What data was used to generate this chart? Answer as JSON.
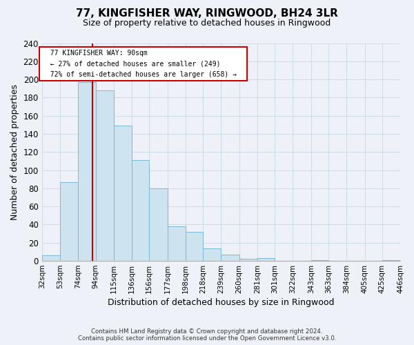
{
  "title": "77, KINGFISHER WAY, RINGWOOD, BH24 3LR",
  "subtitle": "Size of property relative to detached houses in Ringwood",
  "xlabel": "Distribution of detached houses by size in Ringwood",
  "ylabel": "Number of detached properties",
  "footer_line1": "Contains HM Land Registry data © Crown copyright and database right 2024.",
  "footer_line2": "Contains public sector information licensed under the Open Government Licence v3.0.",
  "bin_edges": [
    32,
    53,
    74,
    94,
    115,
    136,
    156,
    177,
    198,
    218,
    239,
    260,
    281,
    301,
    322,
    343,
    363,
    384,
    405,
    425,
    446
  ],
  "bin_labels": [
    "32sqm",
    "53sqm",
    "74sqm",
    "94sqm",
    "115sqm",
    "136sqm",
    "156sqm",
    "177sqm",
    "198sqm",
    "218sqm",
    "239sqm",
    "260sqm",
    "281sqm",
    "301sqm",
    "322sqm",
    "343sqm",
    "363sqm",
    "384sqm",
    "405sqm",
    "425sqm",
    "446sqm"
  ],
  "counts": [
    6,
    87,
    197,
    188,
    149,
    111,
    80,
    38,
    32,
    14,
    7,
    2,
    3,
    0,
    0,
    1,
    0,
    0,
    0,
    1
  ],
  "bar_color": "#cde4f0",
  "bar_edge_color": "#7ab8d4",
  "property_line_x": 90,
  "annotation_title": "77 KINGFISHER WAY: 90sqm",
  "annotation_line2": "← 27% of detached houses are smaller (249)",
  "annotation_line3": "72% of semi-detached houses are larger (658) →",
  "vline_color": "#cc0000",
  "annotation_box_edge": "#cc0000",
  "ylim": [
    0,
    240
  ],
  "yticks": [
    0,
    20,
    40,
    60,
    80,
    100,
    120,
    140,
    160,
    180,
    200,
    220,
    240
  ],
  "background_color": "#eef2f8",
  "plot_background": "#eef2f8",
  "grid_color": "#d0dce8"
}
